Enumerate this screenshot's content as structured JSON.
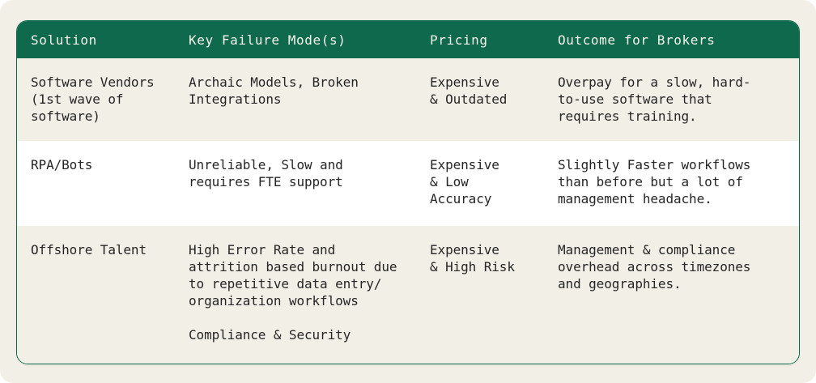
{
  "theme": {
    "header_bg": "#0E694D",
    "border_green": "#0E694D",
    "row_cream": "#F2EFE7",
    "row_white": "#FFFFFF",
    "header_text": "#F6F3EC",
    "body_text": "#262626",
    "page_bg": "#FFFFFF"
  },
  "table": {
    "columns": [
      {
        "key": "solution",
        "label": "Solution"
      },
      {
        "key": "failure",
        "label": "Key Failure Mode(s)"
      },
      {
        "key": "pricing",
        "label": "Pricing"
      },
      {
        "key": "outcome",
        "label": "Outcome for Brokers"
      }
    ],
    "rows": [
      {
        "solution": "Software Vendors\n(1st wave of\nsoftware)",
        "failure": "Archaic Models, Broken\nIntegrations",
        "pricing": "Expensive\n& Outdated",
        "outcome": "Overpay for a slow, hard-\nto-use software that\nrequires training."
      },
      {
        "solution": "RPA/Bots",
        "failure": "Unreliable, Slow and\nrequires FTE support",
        "pricing": "Expensive\n& Low Accuracy",
        "outcome": "Slightly Faster workflows\nthan before but a lot of\nmanagement headache."
      },
      {
        "solution": "Offshore Talent",
        "failure": "High Error Rate and\nattrition based burnout due\nto repetitive data entry/\norganization workflows\n\nCompliance & Security",
        "pricing": "Expensive\n& High Risk",
        "outcome": "Management & compliance\noverhead across timezones\nand geographies."
      }
    ]
  }
}
